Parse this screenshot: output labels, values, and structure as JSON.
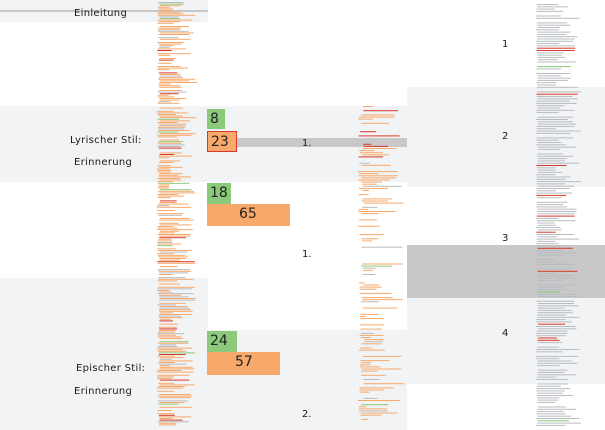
{
  "sections": {
    "intro": "Einleitung",
    "lyric_1": "Lyrischer Stil:",
    "lyric_2": "Erinnerung",
    "epic_1": "Epischer Stil:",
    "epic_2": "Erinnerung"
  },
  "markers": {
    "m1": "1.",
    "m2": "1.",
    "m3": "2."
  },
  "chapters": [
    "1",
    "2",
    "3",
    "4"
  ],
  "boxes": {
    "lyric_green": "8",
    "lyric_orange": "23",
    "mid_green": "18",
    "mid_orange": "65",
    "epic_green": "24",
    "epic_orange": "57"
  },
  "colors": {
    "green": "#8cc97a",
    "orange": "#f6a96a",
    "red": "#d63a2a",
    "band": "#f2f3f4",
    "highlight": "#c8c8c8",
    "line_gray": "#b8bcc0"
  }
}
